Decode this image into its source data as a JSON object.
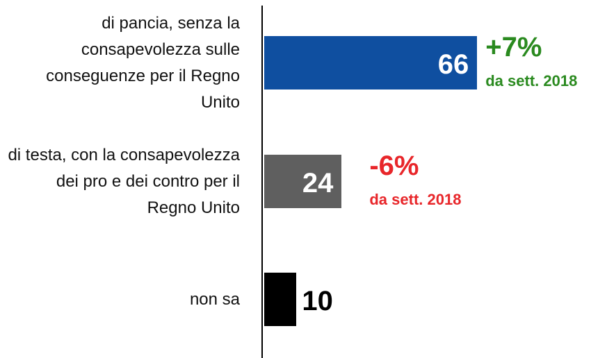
{
  "chart_data": {
    "type": "bar",
    "orientation": "horizontal",
    "categories": [
      "di pancia, senza la consapevolezza sulle conseguenze per il Regno Unito",
      "di testa, con la consapevolezza dei pro e dei contro per il Regno Unito",
      "non sa"
    ],
    "values": [
      66,
      24,
      10
    ],
    "colors": [
      "#0f4fa0",
      "#5f5f5f",
      "#000000"
    ],
    "annotations": [
      {
        "category": 0,
        "change": "+7%",
        "note": "da sett. 2018",
        "color": "#2a8a1f"
      },
      {
        "category": 1,
        "change": "-6%",
        "note": "da sett. 2018",
        "color": "#e8262a"
      }
    ]
  }
}
